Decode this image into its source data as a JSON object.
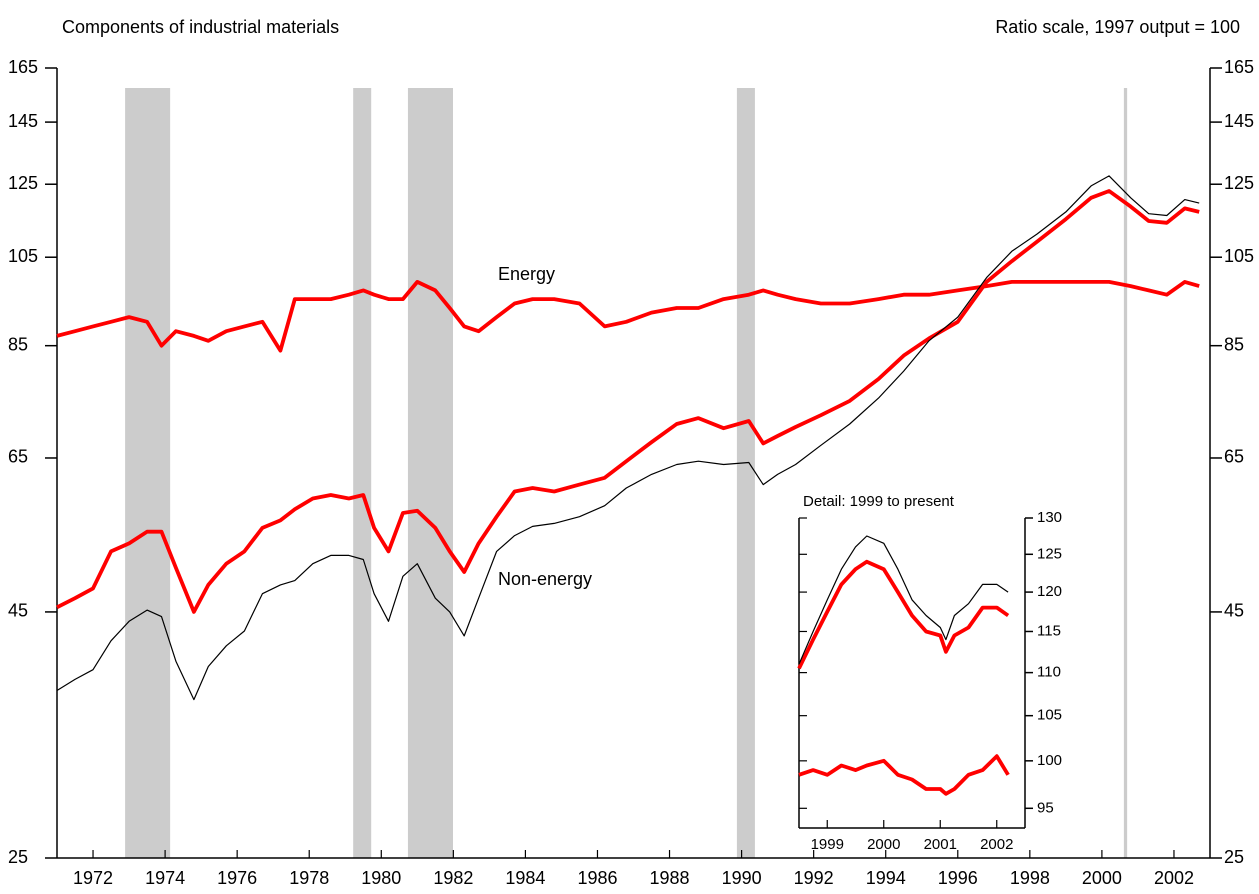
{
  "chart_data": [
    {
      "type": "line",
      "title": "Components of industrial materials",
      "subtitle": "Ratio scale, 1997 output = 100",
      "log": true,
      "xlim": [
        1971,
        2003
      ],
      "xticks": [
        1972,
        1974,
        1976,
        1978,
        1980,
        1982,
        1984,
        1986,
        1988,
        1990,
        1992,
        1994,
        1996,
        1998,
        2000,
        2002
      ],
      "ylim": [
        25,
        165
      ],
      "yticks": [
        25,
        45,
        65,
        85,
        105,
        125,
        145,
        165
      ],
      "y2lim": [
        25,
        165
      ],
      "y2ticks": [
        25,
        45,
        65,
        85,
        105,
        125,
        145,
        165
      ],
      "shading_color": "#cccccc",
      "recessions": [
        [
          1972.89,
          1974.14
        ],
        [
          1979.22,
          1979.72
        ],
        [
          1980.74,
          1981.99
        ],
        [
          1989.87,
          1990.37
        ],
        [
          2000.61,
          2000.7
        ]
      ],
      "x": [
        1971,
        1971.5,
        1972,
        1972.5,
        1973,
        1973.5,
        1973.9,
        1974.3,
        1974.8,
        1975.2,
        1975.7,
        1976.2,
        1976.7,
        1977.2,
        1977.6,
        1978.1,
        1978.6,
        1979.1,
        1979.5,
        1979.8,
        1980.2,
        1980.6,
        1981.0,
        1981.5,
        1981.9,
        1982.3,
        1982.7,
        1983.2,
        1983.7,
        1984.2,
        1984.8,
        1985.5,
        1986.2,
        1986.8,
        1987.5,
        1988.2,
        1988.8,
        1989.5,
        1990.2,
        1990.6,
        1991.0,
        1991.5,
        1992.2,
        1993,
        1993.8,
        1994.5,
        1995.2,
        1996,
        1996.8,
        1997.5,
        1998.2,
        1999,
        1999.7,
        2000.2,
        2000.8,
        2001.3,
        2001.8,
        2002.3,
        2002.7
      ],
      "series": [
        {
          "name": "Energy",
          "color": "#ff0000",
          "values": [
            87,
            88,
            89,
            90,
            91,
            90,
            85,
            88,
            87,
            86,
            88,
            89,
            90,
            84,
            95,
            95,
            95,
            96,
            97,
            96,
            95,
            95,
            99,
            97,
            93,
            89,
            88,
            91,
            94,
            95,
            95,
            94,
            89,
            90,
            92,
            93,
            93,
            95,
            96,
            97,
            96,
            95,
            94,
            94,
            95,
            96,
            96,
            97,
            98,
            99,
            99,
            99,
            99,
            99,
            98,
            97,
            96,
            99,
            98
          ]
        },
        {
          "name": "Non-energy",
          "color": "#ff0000",
          "values": [
            45.5,
            46.5,
            47.6,
            52,
            53,
            54.5,
            54.5,
            50,
            45,
            48,
            50.5,
            52,
            55,
            56,
            57.5,
            59,
            59.5,
            59,
            59.5,
            55,
            52,
            57,
            57.3,
            55,
            52,
            49.5,
            53,
            56.5,
            60,
            60.5,
            60,
            61,
            62,
            64.5,
            67.5,
            70.5,
            71.5,
            69.8,
            71,
            67.3,
            68.5,
            70,
            72,
            74.5,
            78.5,
            83,
            86.5,
            90,
            99,
            104,
            109,
            115,
            121,
            123,
            118.5,
            114.5,
            114,
            118,
            117
          ]
        },
        {
          "color": "#000000",
          "values": [
            37.3,
            38.3,
            39.2,
            42,
            44,
            45.2,
            44.5,
            40,
            36.5,
            39.5,
            41.5,
            43,
            47,
            48,
            48.5,
            50.5,
            51.5,
            51.5,
            51,
            47,
            44,
            49,
            50.5,
            46.5,
            45,
            42.5,
            46.5,
            52,
            54,
            55.2,
            55.6,
            56.5,
            58,
            60.5,
            62.5,
            64,
            64.5,
            64,
            64.3,
            61,
            62.5,
            64,
            67,
            70.5,
            75,
            80,
            86,
            91,
            100,
            106.5,
            111,
            117,
            124.5,
            127.5,
            121,
            116.5,
            116,
            120.5,
            119.5
          ]
        }
      ]
    },
    {
      "type": "line",
      "title": "Detail: 1999 to present",
      "log": true,
      "xlim": [
        1999,
        2003
      ],
      "xticks": [
        {
          "value": 1999.5,
          "label": "1999"
        },
        {
          "value": 2000.5,
          "label": "2000"
        },
        {
          "value": 2001.5,
          "label": "2001"
        },
        {
          "value": 2002.5,
          "label": "2002"
        }
      ],
      "y2lim": [
        93,
        130
      ],
      "y2ticks": [
        95,
        100,
        105,
        110,
        115,
        120,
        125,
        130
      ],
      "x": [
        1999,
        1999.25,
        1999.5,
        1999.75,
        2000,
        2000.2,
        2000.5,
        2000.75,
        2001,
        2001.25,
        2001.5,
        2001.6,
        2001.75,
        2002,
        2002.25,
        2002.5,
        2002.7
      ],
      "series": [
        {
          "color": "#000000",
          "axis": "y2",
          "values": [
            111,
            115,
            119,
            123,
            126,
            127.5,
            126.5,
            123,
            119,
            117,
            115.5,
            114,
            117,
            118.5,
            121,
            121,
            120
          ]
        },
        {
          "color": "#ff0000",
          "axis": "y2",
          "values": [
            110.5,
            114,
            117.5,
            121,
            123,
            124,
            123,
            120,
            117,
            115,
            114.5,
            112.5,
            114.5,
            115.5,
            118,
            118,
            117
          ]
        },
        {
          "color": "#ff0000",
          "axis": "y2",
          "values": [
            98.5,
            99,
            98.5,
            99.5,
            99,
            99.5,
            100,
            98.5,
            98,
            97,
            97,
            96.5,
            97,
            98.5,
            99,
            100.5,
            98.5
          ]
        }
      ]
    }
  ]
}
